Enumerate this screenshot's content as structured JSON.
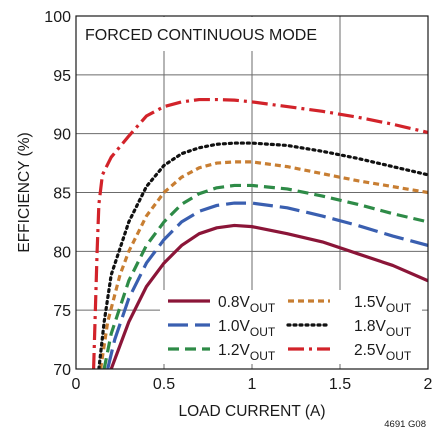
{
  "chart_data": {
    "type": "line",
    "title": "",
    "annotation": "FORCED CONTINUOUS MODE",
    "xlabel": "LOAD CURRENT (A)",
    "ylabel": "EFFICIENCY (%)",
    "xlim": [
      0,
      2
    ],
    "ylim": [
      70,
      100
    ],
    "xticks": [
      0,
      0.5,
      1,
      1.5,
      2
    ],
    "yticks": [
      70,
      75,
      80,
      85,
      90,
      95,
      100
    ],
    "x_tick_labels": [
      "0",
      "0.5",
      "1",
      "1.5",
      "2"
    ],
    "y_tick_labels": [
      "70",
      "75",
      "80",
      "85",
      "90",
      "95",
      "100"
    ],
    "grid": true,
    "legend_position": "bottom-right",
    "figure_id": "4691 G08",
    "series": [
      {
        "name": "0.8V",
        "sub": "OUT",
        "color": "#8b1538",
        "dash": "solid",
        "points": [
          [
            0.2,
            70.0
          ],
          [
            0.25,
            72.0
          ],
          [
            0.3,
            74.0
          ],
          [
            0.4,
            77.0
          ],
          [
            0.5,
            79.0
          ],
          [
            0.6,
            80.5
          ],
          [
            0.7,
            81.5
          ],
          [
            0.8,
            82.0
          ],
          [
            0.9,
            82.2
          ],
          [
            1.0,
            82.1
          ],
          [
            1.2,
            81.5
          ],
          [
            1.4,
            80.8
          ],
          [
            1.6,
            79.8
          ],
          [
            1.8,
            78.8
          ],
          [
            2.0,
            77.5
          ]
        ]
      },
      {
        "name": "1.0V",
        "sub": "OUT",
        "color": "#3a5fb0",
        "dash": "longdash",
        "points": [
          [
            0.18,
            70.0
          ],
          [
            0.22,
            72.5
          ],
          [
            0.3,
            76.0
          ],
          [
            0.4,
            79.0
          ],
          [
            0.5,
            81.0
          ],
          [
            0.6,
            82.5
          ],
          [
            0.7,
            83.4
          ],
          [
            0.8,
            83.9
          ],
          [
            0.9,
            84.1
          ],
          [
            1.0,
            84.1
          ],
          [
            1.2,
            83.7
          ],
          [
            1.4,
            83.0
          ],
          [
            1.6,
            82.2
          ],
          [
            1.8,
            81.3
          ],
          [
            2.0,
            80.5
          ]
        ]
      },
      {
        "name": "1.2V",
        "sub": "OUT",
        "color": "#2e8b47",
        "dash": "dash",
        "points": [
          [
            0.16,
            70.0
          ],
          [
            0.2,
            73.0
          ],
          [
            0.3,
            77.5
          ],
          [
            0.4,
            80.5
          ],
          [
            0.5,
            82.5
          ],
          [
            0.6,
            84.0
          ],
          [
            0.7,
            84.9
          ],
          [
            0.8,
            85.4
          ],
          [
            0.9,
            85.6
          ],
          [
            1.0,
            85.6
          ],
          [
            1.2,
            85.3
          ],
          [
            1.4,
            84.7
          ],
          [
            1.6,
            84.0
          ],
          [
            1.8,
            83.2
          ],
          [
            2.0,
            82.5
          ]
        ]
      },
      {
        "name": "1.5V",
        "sub": "OUT",
        "color": "#c87e32",
        "dash": "shortdash",
        "points": [
          [
            0.14,
            70.0
          ],
          [
            0.18,
            74.0
          ],
          [
            0.25,
            78.0
          ],
          [
            0.3,
            80.0
          ],
          [
            0.4,
            83.0
          ],
          [
            0.5,
            85.0
          ],
          [
            0.6,
            86.3
          ],
          [
            0.7,
            87.1
          ],
          [
            0.8,
            87.5
          ],
          [
            0.9,
            87.6
          ],
          [
            1.0,
            87.6
          ],
          [
            1.2,
            87.2
          ],
          [
            1.4,
            86.6
          ],
          [
            1.6,
            86.0
          ],
          [
            1.8,
            85.5
          ],
          [
            2.0,
            85.0
          ]
        ]
      },
      {
        "name": "1.8V",
        "sub": "OUT",
        "color": "#111111",
        "dash": "dot",
        "points": [
          [
            0.13,
            70.0
          ],
          [
            0.16,
            74.0
          ],
          [
            0.2,
            78.0
          ],
          [
            0.3,
            82.5
          ],
          [
            0.4,
            85.5
          ],
          [
            0.5,
            87.3
          ],
          [
            0.6,
            88.3
          ],
          [
            0.7,
            88.8
          ],
          [
            0.8,
            89.1
          ],
          [
            0.9,
            89.2
          ],
          [
            1.0,
            89.2
          ],
          [
            1.2,
            89.0
          ],
          [
            1.4,
            88.5
          ],
          [
            1.6,
            87.9
          ],
          [
            1.8,
            87.2
          ],
          [
            2.0,
            86.5
          ]
        ]
      },
      {
        "name": "2.5V",
        "sub": "OUT",
        "color": "#d2232a",
        "dash": "dashdot",
        "points": [
          [
            0.1,
            70.0
          ],
          [
            0.11,
            75.0
          ],
          [
            0.12,
            80.0
          ],
          [
            0.13,
            84.0
          ],
          [
            0.15,
            86.5
          ],
          [
            0.2,
            88.0
          ],
          [
            0.3,
            89.8
          ],
          [
            0.4,
            91.5
          ],
          [
            0.5,
            92.3
          ],
          [
            0.6,
            92.7
          ],
          [
            0.7,
            92.9
          ],
          [
            0.8,
            92.9
          ],
          [
            0.9,
            92.85
          ],
          [
            1.0,
            92.7
          ],
          [
            1.2,
            92.3
          ],
          [
            1.4,
            91.9
          ],
          [
            1.6,
            91.4
          ],
          [
            1.8,
            90.8
          ],
          [
            2.0,
            90.1
          ]
        ]
      }
    ]
  }
}
